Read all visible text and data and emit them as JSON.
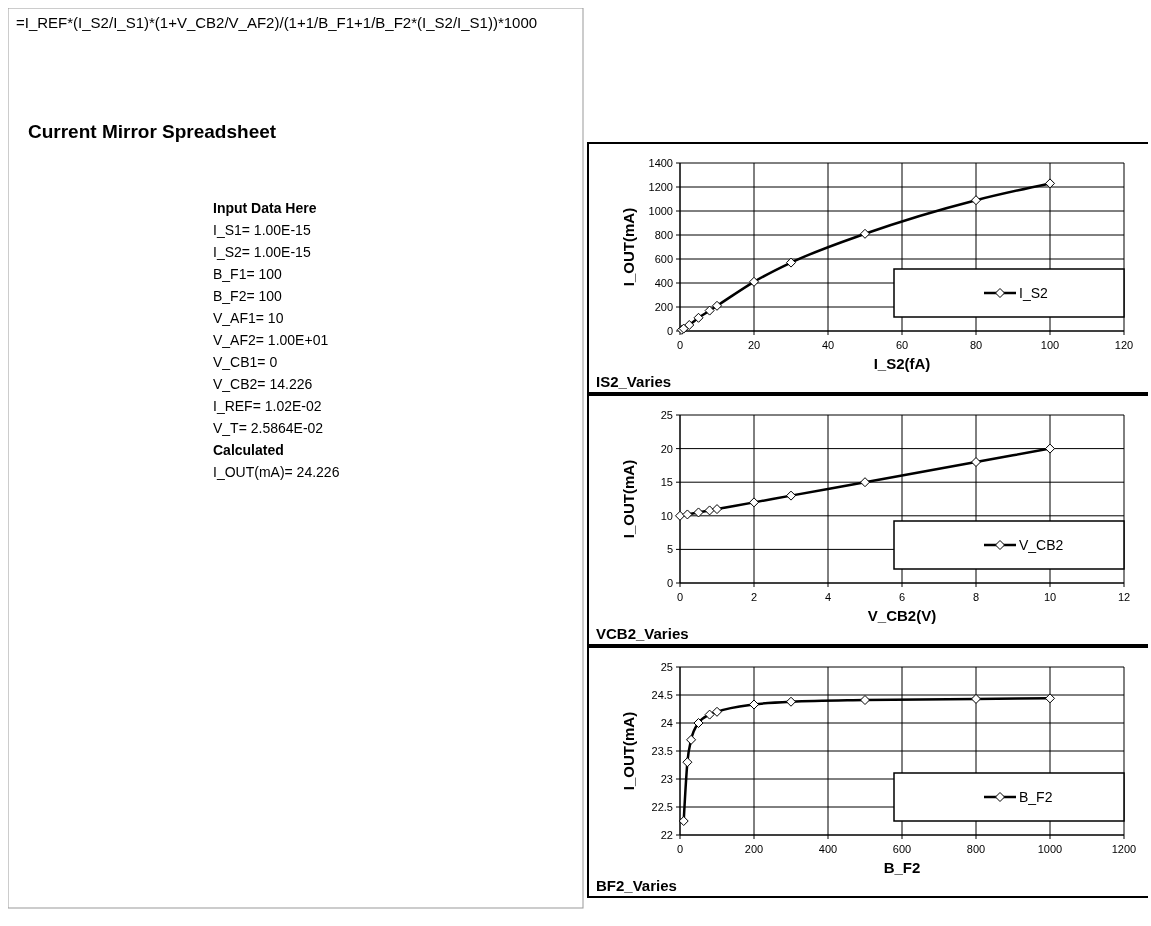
{
  "chart_data": [
    {
      "type": "other",
      "title": "Current Mirror Spreadsheet",
      "annotations": [
        "=I_REF*(I_S2/I_S1)*(1+V_CB2/V_AF2)/(1+1/B_F1+1/B_F2*(I_S2/I_S1))*1000",
        "Input Data Here",
        "I_S1= 1.00E-15",
        "I_S2= 1.00E-15",
        "B_F1= 100",
        "B_F2= 100",
        "V_AF1= 10",
        "V_AF2= 1.00E+01",
        "V_CB1= 0",
        "V_CB2= 14.226",
        "I_REF= 1.02E-02",
        "V_T= 2.5864E-02",
        "Calculated",
        "I_OUT(mA)= 24.226"
      ]
    },
    {
      "type": "line",
      "title": "IS2_Varies",
      "xlabel": "I_S2(fA)",
      "ylabel": "I_OUT(mA)",
      "x": [
        0.5,
        1,
        2.5,
        5,
        8,
        10,
        20,
        30,
        50,
        80,
        100
      ],
      "series": [
        {
          "name": "I_S2",
          "color": "#000000",
          "values": [
            10,
            20,
            50,
            110,
            170,
            210,
            410,
            570,
            810,
            1090,
            1230
          ]
        }
      ],
      "xlim": [
        0,
        120
      ],
      "xticks": [
        0,
        20,
        40,
        60,
        80,
        100,
        120
      ],
      "ylim": [
        0,
        1400
      ],
      "yticks": [
        0,
        200,
        400,
        600,
        800,
        1000,
        1200,
        1400
      ],
      "grid": true,
      "legend": "bottom right",
      "marker": "diamond",
      "line_style": "solid"
    },
    {
      "type": "line",
      "title": "VCB2_Varies",
      "xlabel": "V_CB2(V)",
      "ylabel": "I_OUT(mA)",
      "x": [
        0,
        0.2,
        0.5,
        0.8,
        1,
        2,
        3,
        5,
        8,
        10
      ],
      "series": [
        {
          "name": "V_CB2",
          "color": "#000000",
          "values": [
            10,
            10.2,
            10.5,
            10.8,
            11,
            12,
            13,
            15,
            18,
            20
          ]
        }
      ],
      "xlim": [
        0,
        12
      ],
      "xticks": [
        0,
        2,
        4,
        6,
        8,
        10,
        12
      ],
      "ylim": [
        0,
        25
      ],
      "yticks": [
        0,
        5,
        10,
        15,
        20,
        25
      ],
      "grid": true,
      "legend": "bottom right",
      "marker": "diamond",
      "line_style": "solid"
    },
    {
      "type": "line",
      "title": "BF2_Varies",
      "xlabel": "B_F2",
      "ylabel": "I_OUT(mA)",
      "x": [
        10,
        20,
        30,
        50,
        80,
        100,
        200,
        300,
        500,
        800,
        1000
      ],
      "series": [
        {
          "name": "B_F2",
          "color": "#000000",
          "values": [
            22.25,
            23.3,
            23.7,
            24.0,
            24.15,
            24.2,
            24.33,
            24.38,
            24.41,
            24.43,
            24.44
          ]
        }
      ],
      "xlim": [
        0,
        1200
      ],
      "xticks": [
        0,
        200,
        400,
        600,
        800,
        1000,
        1200
      ],
      "ylim": [
        22,
        25
      ],
      "yticks": [
        22,
        22.5,
        23,
        23.5,
        24,
        24.5,
        25
      ],
      "grid": true,
      "legend": "bottom right",
      "marker": "diamond",
      "line_style": "solid"
    }
  ]
}
